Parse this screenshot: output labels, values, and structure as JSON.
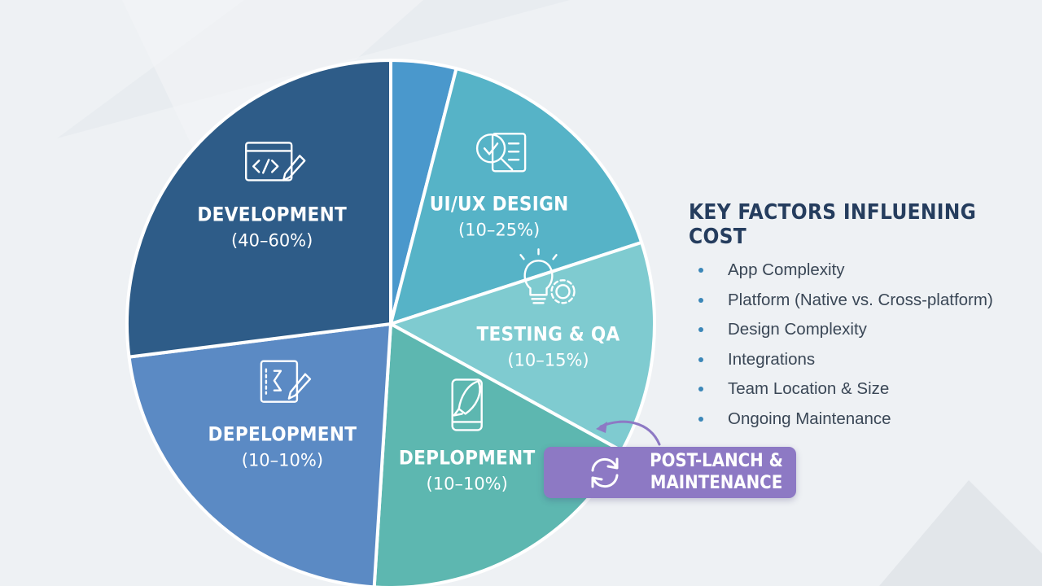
{
  "chart_data": {
    "type": "pie",
    "slices": [
      {
        "label": "",
        "range": "",
        "value": 4,
        "color": "#4a98cc",
        "icon": ""
      },
      {
        "label": "UI/UX DESIGN",
        "range": "(10–25%)",
        "value": 16,
        "color": "#56b3c7",
        "icon": "design-review-icon"
      },
      {
        "label": "TESTING & QA",
        "range": "(10–15%)",
        "value": 13,
        "color": "#7fcbd0",
        "icon": "lightbulb-gear-icon"
      },
      {
        "label": "DEPLOPMENT",
        "range": "(10–10%)",
        "value": 18,
        "color": "#5db7b0",
        "icon": "smartphone-rocket-icon"
      },
      {
        "label": "DEPELOPMENT",
        "range": "(10–10%)",
        "value": 22,
        "color": "#5b8ac4",
        "icon": "document-pen-icon"
      },
      {
        "label": "DEVELOPMENT",
        "range": "(40–60%)",
        "value": 27,
        "color": "#2e5c88",
        "icon": "code-window-icon"
      }
    ]
  },
  "factors": {
    "title": "KEY FACTORS INFLUENING COST",
    "items": [
      "App Complexity",
      "Platform (Native vs. Cross-platform)",
      "Design Complexity",
      "Integrations",
      "Team Location & Size",
      "Ongoing Maintenance"
    ]
  },
  "post_launch": {
    "text": "POST-LANCH &\nMAINTENANCE",
    "color": "#8d79c4",
    "icon": "cycle-arrows-icon"
  }
}
